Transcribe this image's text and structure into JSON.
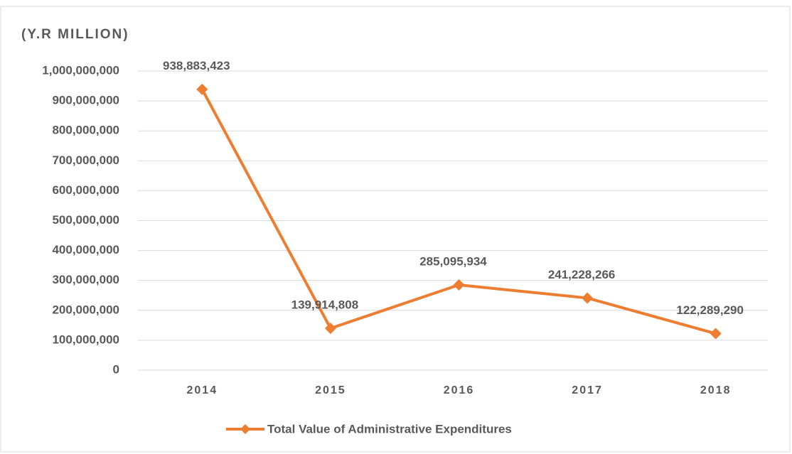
{
  "chart_data": {
    "type": "line",
    "y_axis_label": "(Y.R MILLION)",
    "categories": [
      "2014",
      "2015",
      "2016",
      "2017",
      "2018"
    ],
    "series": [
      {
        "name": "Total Value of Administrative Expenditures",
        "color": "#ed7d31",
        "values": [
          938883423,
          139914808,
          285095934,
          241228266,
          122289290
        ],
        "value_labels": [
          "938,883,423",
          "139,914,808",
          "285,095,934",
          "241,228,266",
          "122,289,290"
        ]
      }
    ],
    "ylim": [
      0,
      1000000000
    ],
    "yticks": [
      0,
      {
        "value": 100000000,
        "label": "100,000,000"
      },
      {
        "value": 200000000,
        "label": "200,000,000"
      },
      {
        "value": 300000000,
        "label": "300,000,000"
      },
      {
        "value": 400000000,
        "label": "400,000,000"
      },
      {
        "value": 500000000,
        "label": "500,000,000"
      },
      {
        "value": 600000000,
        "label": "600,000,000"
      },
      {
        "value": 700000000,
        "label": "700,000,000"
      },
      {
        "value": 800000000,
        "label": "800,000,000"
      },
      {
        "value": 900000000,
        "label": "900,000,000"
      },
      {
        "value": 1000000000,
        "label": "1,000,000,000"
      }
    ],
    "grid": true,
    "legend": "bottom"
  }
}
